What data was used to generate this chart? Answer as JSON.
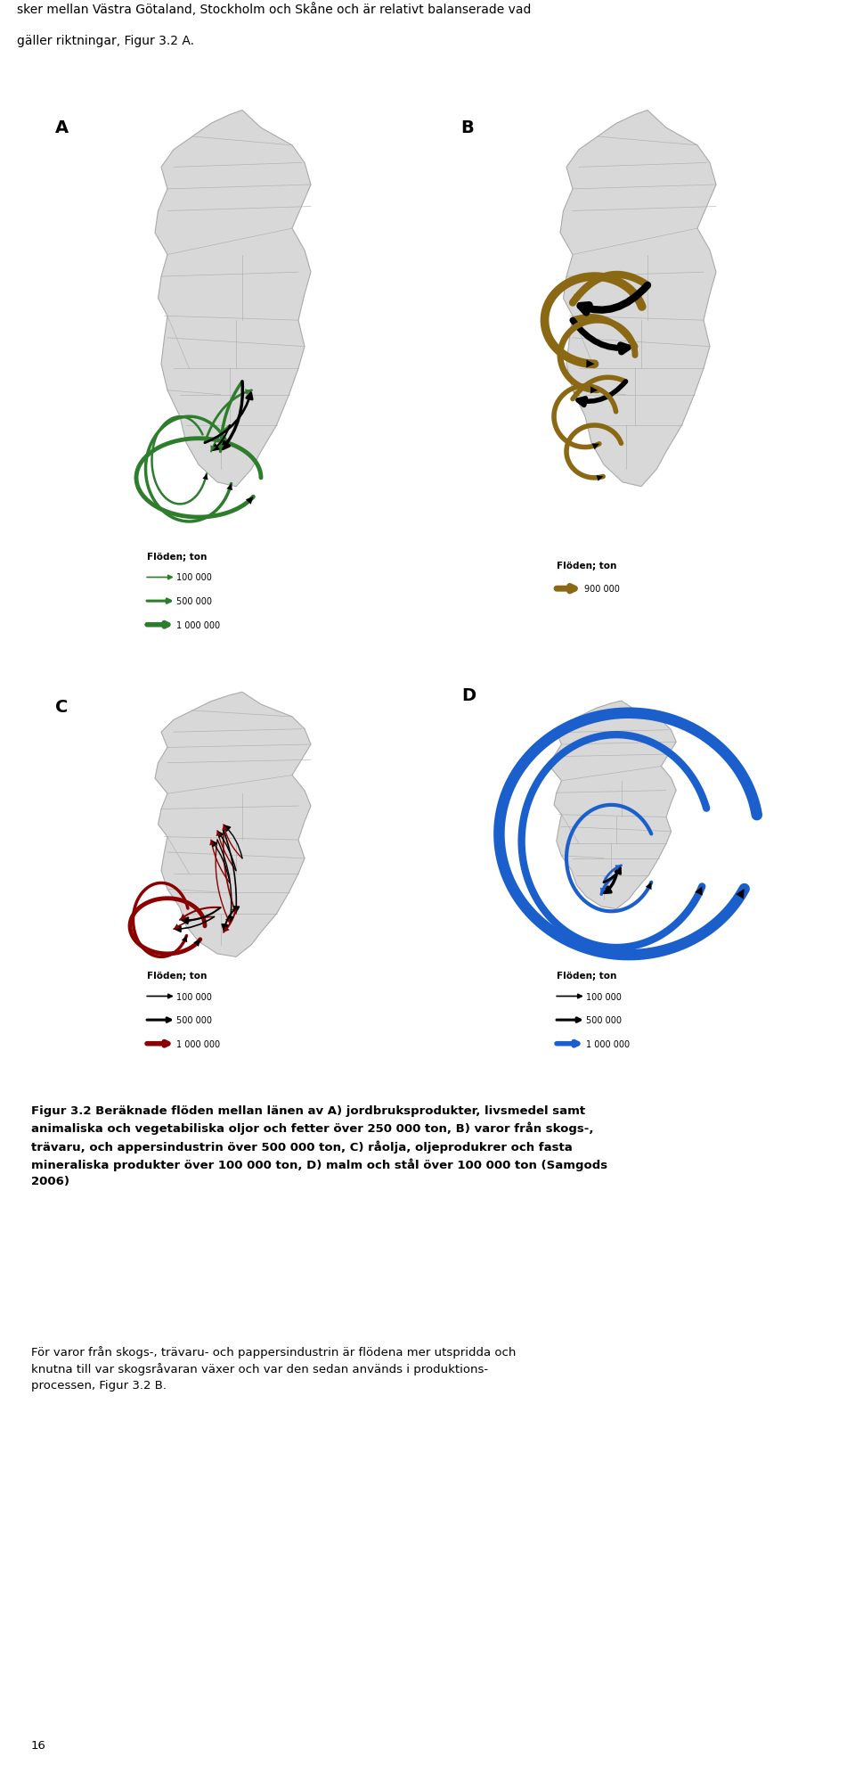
{
  "top_text_line1": "sker mellan Västra Götaland, Stockholm och Skåne och är relativt balanserade vad",
  "top_text_line2": "gäller riktningar, Figur 3.2 A.",
  "panel_labels": [
    "A",
    "B",
    "C",
    "D"
  ],
  "legend_A_title": "Flöden; ton",
  "legend_A_items": [
    "100 000",
    "500 000",
    "1 000 000"
  ],
  "legend_A_color": "#2d7d2d",
  "legend_B_title": "Flöden; ton",
  "legend_B_items": [
    "900 000"
  ],
  "legend_B_color": "#8B6914",
  "legend_C_title": "Flöden; ton",
  "legend_C_items": [
    "100 000",
    "500 000",
    "1 000 000"
  ],
  "legend_C_color": "#8B0000",
  "legend_D_title": "Flöden; ton",
  "legend_D_items": [
    "100 000",
    "500 000",
    "1 000 000"
  ],
  "legend_D_color": "#1a5fcc",
  "caption_text": "Figur 3.2 Beräknade flöden mellan länen av A) jordbruksprodukter, livsmedel samt\nanimaliska och vegetabiliska oljor och fetter över 250 000 ton, B) varor från skogs-,\nträvaru, och appersindustrin över 500 000 ton, C) råolja, oljeprodukrer och fasta\nmineraliska produkter över 100 000 ton, D) malm och stål över 100 000 ton (Samgods\n2006)",
  "body_text": "För varor från skogs-, trävaru- och pappersindustrin är flödena mer utspridda och\nknutna till var skogsråvaran växer och var den sedan används i produktions-\nprocessen, Figur 3.2 B.",
  "page_number": "16",
  "bg": "#ffffff",
  "map_fill": "#d8d8d8",
  "map_edge": "#aaaaaa",
  "arrow_A": "#2d7d2d",
  "arrow_B": "#8B6914",
  "arrow_C": "#8B0000",
  "arrow_D": "#1a5fcc"
}
